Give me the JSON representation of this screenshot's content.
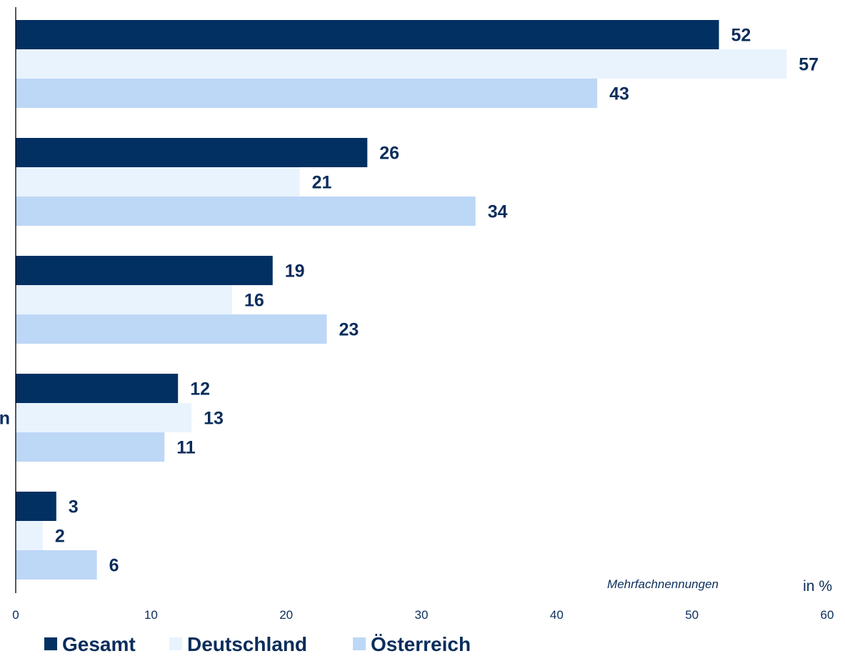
{
  "chart_data": {
    "type": "bar",
    "orientation": "horizontal",
    "categories": [
      "",
      "",
      "",
      "n",
      ""
    ],
    "series": [
      {
        "name": "Gesamt",
        "color": "#023062",
        "values": [
          52,
          26,
          19,
          12,
          3
        ]
      },
      {
        "name": "Deutschland",
        "color": "#E9F3FE",
        "values": [
          57,
          21,
          16,
          13,
          2
        ]
      },
      {
        "name": "Österreich",
        "color": "#BDD7F6",
        "values": [
          43,
          34,
          23,
          11,
          6
        ]
      }
    ],
    "value_labels": [
      [
        "52",
        "57",
        "43"
      ],
      [
        "26",
        "21",
        "34"
      ],
      [
        "19",
        "16",
        "23"
      ],
      [
        "12",
        "13",
        "11"
      ],
      [
        "3",
        "2",
        "6"
      ]
    ],
    "xlim": [
      0,
      60
    ],
    "xticks": [
      0,
      10,
      20,
      30,
      40,
      50,
      60
    ],
    "xtick_labels": [
      "0",
      "10",
      "20",
      "30",
      "40",
      "50",
      "60"
    ],
    "annotation": "Mehrfachnennungen",
    "unit_label": "in %",
    "grid": false,
    "legend_position": "bottom-left",
    "label_color": "#0B2D5C"
  }
}
